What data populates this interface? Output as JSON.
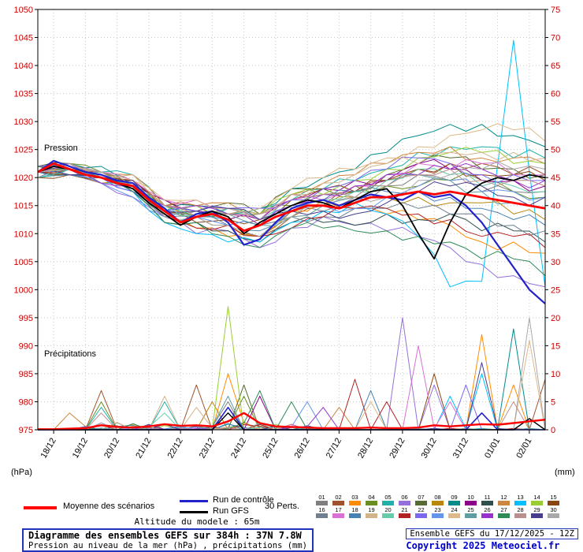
{
  "chart_data": {
    "type": "line",
    "title": "Diagramme des ensembles GEFS sur 384h : 37N 7.8W",
    "x_hours_step": 12,
    "x_max_hours": 384,
    "pressure_axis": {
      "unit": "(hPa)",
      "min": 975,
      "max": 1050,
      "ticks": [
        1050,
        1045,
        1040,
        1035,
        1030,
        1025,
        1020,
        1015,
        1010,
        1005,
        1000,
        995,
        990,
        985,
        980,
        975
      ]
    },
    "precip_axis": {
      "unit": "(mm)",
      "min": 0,
      "max": 75,
      "ticks": [
        75,
        70,
        65,
        60,
        55,
        50,
        45,
        40,
        35,
        30,
        25,
        20,
        15,
        10,
        5,
        0
      ]
    },
    "dates": [
      {
        "label": "18/12",
        "t": 12
      },
      {
        "label": "19/12",
        "t": 36
      },
      {
        "label": "20/12",
        "t": 60
      },
      {
        "label": "21/12",
        "t": 84
      },
      {
        "label": "22/12",
        "t": 108
      },
      {
        "label": "23/12",
        "t": 132
      },
      {
        "label": "24/12",
        "t": 156
      },
      {
        "label": "25/12",
        "t": 180
      },
      {
        "label": "26/12",
        "t": 204
      },
      {
        "label": "27/12",
        "t": 228
      },
      {
        "label": "28/12",
        "t": 252
      },
      {
        "label": "29/12",
        "t": 276
      },
      {
        "label": "30/12",
        "t": 300
      },
      {
        "label": "31/12",
        "t": 324
      },
      {
        "label": "01/01",
        "t": 348
      },
      {
        "label": "02/01",
        "t": 372
      }
    ],
    "annotations": {
      "pressure": "Pression",
      "precip": "Précipitations"
    },
    "mean": {
      "name": "Moyenne des scénarios",
      "color": "#ff0000",
      "pressure": [
        1021,
        1022.5,
        1021.5,
        1020.5,
        1020,
        1019,
        1018.5,
        1016,
        1014,
        1012,
        1013,
        1013.5,
        1012.5,
        1010.5,
        1011.5,
        1013,
        1014,
        1015,
        1015,
        1014.5,
        1015.5,
        1016.5,
        1016.5,
        1017,
        1017.5,
        1017,
        1017.5,
        1017,
        1016.5,
        1016,
        1015.5,
        1015,
        1014.5
      ],
      "precip": [
        0.1,
        0.1,
        0.2,
        0.3,
        0.8,
        0.5,
        0.4,
        0.6,
        1.0,
        0.7,
        0.8,
        0.6,
        1.5,
        3.0,
        1.2,
        0.6,
        0.5,
        0.4,
        0.3,
        0.3,
        0.3,
        0.4,
        0.3,
        0.3,
        0.4,
        0.8,
        0.6,
        0.8,
        1.0,
        0.9,
        1.2,
        1.5,
        1.8
      ]
    },
    "control": {
      "name": "Run de contrôle",
      "color": "#2222cc",
      "pressure": [
        1021,
        1023,
        1022,
        1021,
        1020.5,
        1019.5,
        1019,
        1016.5,
        1014.5,
        1012,
        1013.5,
        1014,
        1012,
        1008,
        1009,
        1012,
        1014.5,
        1015.5,
        1016,
        1015,
        1016,
        1017,
        1016.5,
        1016,
        1017.5,
        1016.5,
        1017,
        1015,
        1012,
        1008,
        1004,
        1000,
        997.5
      ],
      "precip_events": [
        [
          144,
          4
        ],
        [
          336,
          3
        ]
      ]
    },
    "gfs": {
      "name": "Run GFS",
      "color": "#000000",
      "pressure": [
        1021,
        1022,
        1021.5,
        1020.5,
        1020,
        1019,
        1018,
        1015.5,
        1013.5,
        1011.5,
        1013,
        1014,
        1013,
        1010,
        1012,
        1013.5,
        1015,
        1016,
        1015.5,
        1014.5,
        1016,
        1017.5,
        1018,
        1015,
        1010,
        1005.5,
        1012,
        1017,
        1019,
        1020,
        1019.5,
        1020.5,
        1020
      ],
      "precip_events": [
        [
          144,
          3
        ],
        [
          372,
          2
        ]
      ]
    },
    "members_label": "30 Perts.",
    "member_anchor_step": 24,
    "member_base": [
      1021,
      1021.5,
      1020,
      1018.5,
      1014,
      1013,
      1012.5,
      1011.5,
      1014,
      1015,
      1015.5,
      1016.5,
      1017.5,
      1017.5,
      1016.5,
      1015.5,
      1014.5
    ],
    "members": [
      {
        "n": "01",
        "color": "#7f7f7f",
        "dp": [
          0,
          1,
          0,
          -1,
          0,
          1,
          2,
          1,
          0,
          -1,
          1,
          2,
          3,
          2,
          1,
          2,
          3
        ],
        "pr": [
          [
            144,
            5
          ]
        ]
      },
      {
        "n": "02",
        "color": "#a0522d",
        "dp": [
          1,
          0,
          -1,
          0,
          1,
          2,
          0,
          -2,
          -1,
          0,
          2,
          3,
          4,
          5,
          6,
          5,
          6
        ],
        "pr": [
          [
            48,
            7
          ],
          [
            120,
            8
          ],
          [
            384,
            9
          ]
        ]
      },
      {
        "n": "03",
        "color": "#ff8c00",
        "dp": [
          0,
          -1,
          0,
          1,
          -1,
          -2,
          -3,
          -2,
          0,
          1,
          -1,
          -3,
          -5,
          -6,
          -8,
          -7,
          -8
        ],
        "pr": [
          [
            144,
            10
          ],
          [
            336,
            17
          ],
          [
            360,
            8
          ]
        ]
      },
      {
        "n": "04",
        "color": "#6b8e23",
        "dp": [
          0,
          1,
          1,
          0,
          -1,
          0,
          1,
          2,
          1,
          2,
          3,
          2,
          1,
          2,
          3,
          2,
          2
        ],
        "pr": [
          [
            48,
            5
          ],
          [
            156,
            6
          ]
        ]
      },
      {
        "n": "05",
        "color": "#20b2aa",
        "dp": [
          -1,
          0,
          1,
          2,
          1,
          0,
          2,
          3,
          2,
          3,
          4,
          5,
          7,
          8,
          9,
          8,
          9
        ],
        "pr": [
          [
            48,
            4
          ],
          [
            96,
            5
          ]
        ]
      },
      {
        "n": "06",
        "color": "#9370db",
        "dp": [
          0,
          0,
          -1,
          -2,
          -1,
          -3,
          -2,
          -4,
          -3,
          -2,
          -4,
          -6,
          -8,
          -10,
          -12,
          -13,
          -14
        ],
        "pr": [
          [
            276,
            20
          ],
          [
            300,
            8
          ]
        ]
      },
      {
        "n": "07",
        "color": "#556b2f",
        "dp": [
          1,
          1,
          0,
          1,
          2,
          1,
          3,
          2,
          4,
          3,
          2,
          4,
          5,
          6,
          5,
          6,
          6
        ],
        "pr": [
          [
            156,
            8
          ]
        ]
      },
      {
        "n": "08",
        "color": "#b8860b",
        "dp": [
          0,
          -1,
          -1,
          0,
          1,
          0,
          -1,
          -2,
          -1,
          0,
          1,
          0,
          -1,
          -2,
          -1,
          -2,
          -2
        ],
        "pr": [
          [
            132,
            5
          ]
        ]
      },
      {
        "n": "09",
        "color": "#008b8b",
        "dp": [
          0,
          1,
          2,
          1,
          0,
          2,
          1,
          3,
          4,
          5,
          6,
          8,
          10,
          12,
          13,
          12,
          11
        ],
        "pr": [
          [
            360,
            18
          ]
        ]
      },
      {
        "n": "10",
        "color": "#8b008b",
        "dp": [
          -1,
          0,
          0,
          1,
          2,
          1,
          0,
          1,
          2,
          3,
          4,
          3,
          5,
          4,
          3,
          4,
          4
        ],
        "pr": [
          [
            168,
            6
          ]
        ]
      },
      {
        "n": "11",
        "color": "#2f4f4f",
        "dp": [
          0,
          -1,
          0,
          -1,
          -2,
          -1,
          -2,
          -3,
          -2,
          -3,
          -4,
          -3,
          -5,
          -4,
          -6,
          -5,
          -6
        ],
        "pr": [
          [
            144,
            3
          ]
        ]
      },
      {
        "n": "12",
        "color": "#cd853f",
        "dp": [
          1,
          0,
          1,
          2,
          1,
          2,
          3,
          2,
          3,
          4,
          5,
          6,
          7,
          8,
          7,
          8,
          8
        ],
        "pr": [
          [
            24,
            3
          ],
          [
            228,
            4
          ]
        ]
      },
      {
        "n": "13",
        "color": "#00bfff",
        "dp": [
          0,
          1,
          0,
          -1,
          -2,
          -3,
          -4,
          -3,
          -2,
          -1,
          0,
          -3,
          -8,
          -17,
          -15,
          29,
          -14
        ],
        "pr": [
          [
            312,
            6
          ],
          [
            336,
            10
          ]
        ]
      },
      {
        "n": "14",
        "color": "#9acd32",
        "dp": [
          0,
          0,
          1,
          0,
          1,
          2,
          1,
          2,
          3,
          2,
          4,
          5,
          6,
          7,
          8,
          7,
          8
        ],
        "pr": [
          [
            144,
            22
          ]
        ]
      },
      {
        "n": "15",
        "color": "#8b4513",
        "dp": [
          -1,
          -1,
          0,
          1,
          0,
          -1,
          0,
          1,
          2,
          3,
          2,
          3,
          4,
          5,
          4,
          5,
          5
        ],
        "pr": [
          [
            300,
            10
          ]
        ]
      },
      {
        "n": "16",
        "color": "#708090",
        "dp": [
          0,
          1,
          0,
          0,
          -1,
          0,
          -1,
          0,
          -1,
          -2,
          -1,
          -2,
          -3,
          -4,
          -3,
          -4,
          -4
        ],
        "pr": [
          [
            144,
            4
          ]
        ]
      },
      {
        "n": "17",
        "color": "#da70d6",
        "dp": [
          1,
          0,
          1,
          1,
          2,
          3,
          2,
          1,
          2,
          1,
          3,
          4,
          5,
          4,
          6,
          5,
          6
        ],
        "pr": [
          [
            288,
            15
          ],
          [
            312,
            5
          ]
        ]
      },
      {
        "n": "18",
        "color": "#4682b4",
        "dp": [
          0,
          -1,
          0,
          -1,
          0,
          1,
          0,
          -1,
          0,
          1,
          2,
          1,
          0,
          -1,
          -2,
          -3,
          -3
        ],
        "pr": [
          [
            252,
            7
          ]
        ]
      },
      {
        "n": "19",
        "color": "#d2b48c",
        "dp": [
          0,
          1,
          1,
          2,
          1,
          0,
          1,
          2,
          3,
          4,
          5,
          6,
          5,
          7,
          8,
          9,
          9
        ],
        "pr": [
          [
            96,
            6
          ],
          [
            120,
            4
          ]
        ]
      },
      {
        "n": "20",
        "color": "#66cdaa",
        "dp": [
          -1,
          0,
          -1,
          0,
          1,
          0,
          2,
          1,
          0,
          1,
          2,
          3,
          4,
          3,
          2,
          3,
          3
        ],
        "pr": [
          [
            96,
            3
          ]
        ]
      },
      {
        "n": "21",
        "color": "#b22222",
        "dp": [
          0,
          0,
          1,
          0,
          -1,
          -2,
          -1,
          -2,
          -3,
          -2,
          -1,
          -2,
          -4,
          -5,
          -7,
          -6,
          -7
        ],
        "pr": [
          [
            240,
            9
          ],
          [
            264,
            5
          ]
        ]
      },
      {
        "n": "22",
        "color": "#7b68ee",
        "dp": [
          1,
          1,
          0,
          -1,
          0,
          1,
          2,
          3,
          2,
          3,
          4,
          5,
          6,
          5,
          4,
          5,
          5
        ],
        "pr": [
          [
            324,
            8
          ]
        ]
      },
      {
        "n": "23",
        "color": "#6495ed",
        "dp": [
          0,
          -1,
          -1,
          -2,
          -1,
          0,
          -1,
          0,
          1,
          0,
          -1,
          0,
          1,
          2,
          1,
          2,
          2
        ],
        "pr": [
          [
            204,
            5
          ]
        ]
      },
      {
        "n": "24",
        "color": "#deb887",
        "dp": [
          0,
          1,
          0,
          1,
          2,
          3,
          2,
          3,
          4,
          5,
          6,
          7,
          8,
          10,
          12,
          13,
          12
        ],
        "pr": [
          [
            252,
            5
          ],
          [
            372,
            16
          ]
        ]
      },
      {
        "n": "25",
        "color": "#5f9ea0",
        "dp": [
          -1,
          0,
          1,
          0,
          -1,
          0,
          1,
          0,
          -1,
          0,
          1,
          2,
          3,
          2,
          1,
          0,
          0
        ],
        "pr": [
          [
            144,
            6
          ]
        ]
      },
      {
        "n": "26",
        "color": "#9932cc",
        "dp": [
          0,
          0,
          -1,
          0,
          1,
          2,
          1,
          0,
          1,
          2,
          3,
          4,
          3,
          4,
          5,
          4,
          5
        ],
        "pr": [
          [
            216,
            4
          ]
        ]
      },
      {
        "n": "27",
        "color": "#2e8b57",
        "dp": [
          1,
          0,
          0,
          -1,
          -2,
          -1,
          -3,
          -4,
          -3,
          -4,
          -5,
          -6,
          -8,
          -9,
          -11,
          -10,
          -12
        ],
        "pr": [
          [
            168,
            7
          ],
          [
            192,
            5
          ]
        ]
      },
      {
        "n": "28",
        "color": "#bc8f8f",
        "dp": [
          0,
          1,
          1,
          0,
          1,
          0,
          1,
          2,
          3,
          2,
          1,
          2,
          3,
          4,
          3,
          4,
          4
        ],
        "pr": [
          [
            48,
            3
          ],
          [
            360,
            5
          ]
        ]
      },
      {
        "n": "29",
        "color": "#483d8b",
        "dp": [
          0,
          -1,
          0,
          1,
          0,
          1,
          2,
          1,
          0,
          -1,
          -2,
          -1,
          0,
          1,
          2,
          1,
          2
        ],
        "pr": [
          [
            336,
            12
          ]
        ]
      },
      {
        "n": "30",
        "color": "#a9a9a9",
        "dp": [
          0,
          0,
          1,
          0,
          -1,
          0,
          -1,
          -2,
          -1,
          0,
          1,
          0,
          2,
          3,
          5,
          6,
          7
        ],
        "pr": [
          [
            372,
            20
          ]
        ]
      }
    ]
  },
  "legend": {
    "mean_label": "Moyenne des scénarios",
    "control_label": "Run de contrôle",
    "gfs_label": "Run GFS",
    "perts_label": "30 Perts.",
    "altitude": "Altitude du modele : 65m"
  },
  "footer": {
    "title": "Diagramme des ensembles GEFS sur 384h : 37N 7.8W",
    "subtitle": "Pression au niveau de la mer (hPa) , précipitations (mm)",
    "run_info": "Ensemble GEFS du 17/12/2025 - 12Z",
    "copyright": "Copyright 2025 Meteociel.fr"
  },
  "colors": {
    "axis_label": "#cc0000",
    "grid": "#c8c8c8",
    "mean": "#ff0000",
    "control": "#2222cc",
    "gfs": "#000000",
    "copyright_blue": "#0000cc"
  }
}
